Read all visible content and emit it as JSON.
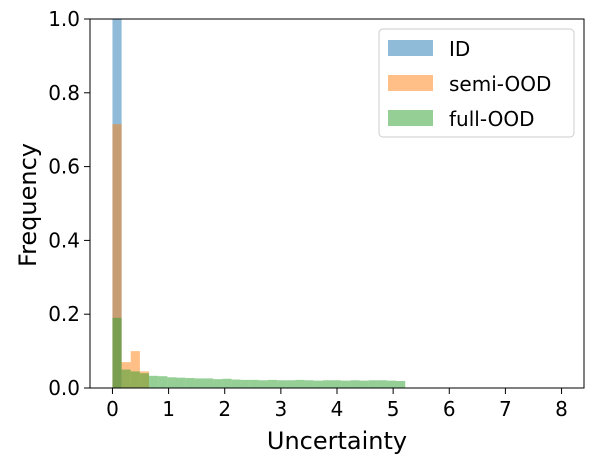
{
  "chart_data": {
    "type": "histogram",
    "title": "",
    "xlabel": "Uncertainty",
    "ylabel": "Frequency",
    "xlim": [
      -0.4,
      8.4
    ],
    "ylim": [
      0,
      1.0
    ],
    "xticks": [
      "0",
      "1",
      "2",
      "3",
      "4",
      "5",
      "6",
      "7",
      "8"
    ],
    "yticks": [
      "0.0",
      "0.2",
      "0.4",
      "0.6",
      "0.8",
      "1.0"
    ],
    "legend_position": "top-right",
    "bin_width": 0.163,
    "series": [
      {
        "name": "ID",
        "color": "#1f77b4",
        "bins": [
          {
            "x0": 0.0,
            "x1": 0.163,
            "y": 1.0
          }
        ]
      },
      {
        "name": "semi-OOD",
        "color": "#ff7f0e",
        "bins": [
          {
            "x0": 0.0,
            "x1": 0.163,
            "y": 0.715
          },
          {
            "x0": 0.163,
            "x1": 0.326,
            "y": 0.07
          },
          {
            "x0": 0.326,
            "x1": 0.489,
            "y": 0.1
          },
          {
            "x0": 0.489,
            "x1": 0.652,
            "y": 0.045
          }
        ]
      },
      {
        "name": "full-OOD",
        "color": "#2ca02c",
        "bins": [
          {
            "x0": 0.0,
            "x1": 0.163,
            "y": 0.19
          },
          {
            "x0": 0.163,
            "x1": 0.326,
            "y": 0.05
          },
          {
            "x0": 0.326,
            "x1": 0.489,
            "y": 0.045
          },
          {
            "x0": 0.489,
            "x1": 0.652,
            "y": 0.04
          },
          {
            "x0": 0.652,
            "x1": 0.815,
            "y": 0.033
          },
          {
            "x0": 0.815,
            "x1": 0.978,
            "y": 0.032
          },
          {
            "x0": 0.978,
            "x1": 1.141,
            "y": 0.029
          },
          {
            "x0": 1.141,
            "x1": 1.304,
            "y": 0.028
          },
          {
            "x0": 1.304,
            "x1": 1.467,
            "y": 0.027
          },
          {
            "x0": 1.467,
            "x1": 1.63,
            "y": 0.026
          },
          {
            "x0": 1.63,
            "x1": 1.793,
            "y": 0.026
          },
          {
            "x0": 1.793,
            "x1": 1.956,
            "y": 0.024
          },
          {
            "x0": 1.956,
            "x1": 2.119,
            "y": 0.025
          },
          {
            "x0": 2.119,
            "x1": 2.282,
            "y": 0.023
          },
          {
            "x0": 2.282,
            "x1": 2.445,
            "y": 0.022
          },
          {
            "x0": 2.445,
            "x1": 2.608,
            "y": 0.022
          },
          {
            "x0": 2.608,
            "x1": 2.771,
            "y": 0.021
          },
          {
            "x0": 2.771,
            "x1": 2.934,
            "y": 0.022
          },
          {
            "x0": 2.934,
            "x1": 3.097,
            "y": 0.021
          },
          {
            "x0": 3.097,
            "x1": 3.26,
            "y": 0.021
          },
          {
            "x0": 3.26,
            "x1": 3.423,
            "y": 0.022
          },
          {
            "x0": 3.423,
            "x1": 3.586,
            "y": 0.021
          },
          {
            "x0": 3.586,
            "x1": 3.749,
            "y": 0.02
          },
          {
            "x0": 3.749,
            "x1": 3.912,
            "y": 0.021
          },
          {
            "x0": 3.912,
            "x1": 4.075,
            "y": 0.021
          },
          {
            "x0": 4.075,
            "x1": 4.238,
            "y": 0.02
          },
          {
            "x0": 4.238,
            "x1": 4.401,
            "y": 0.021
          },
          {
            "x0": 4.401,
            "x1": 4.564,
            "y": 0.02
          },
          {
            "x0": 4.564,
            "x1": 4.727,
            "y": 0.021
          },
          {
            "x0": 4.727,
            "x1": 4.89,
            "y": 0.021
          },
          {
            "x0": 4.89,
            "x1": 5.053,
            "y": 0.02
          },
          {
            "x0": 5.053,
            "x1": 5.216,
            "y": 0.019
          }
        ]
      }
    ]
  }
}
